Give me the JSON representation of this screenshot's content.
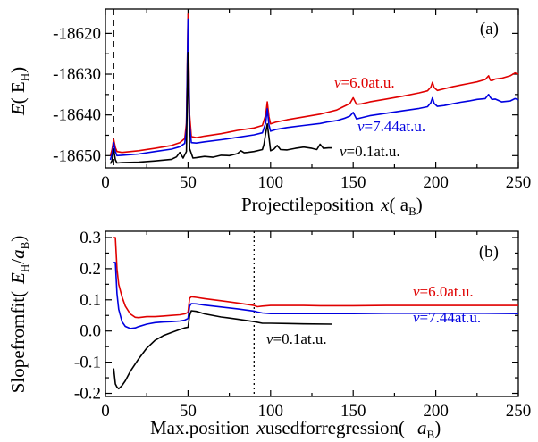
{
  "chart_data": [
    {
      "panel": "(a)",
      "type": "line",
      "xlabel": {
        "main": "Projectileposition",
        "var": "x",
        "unit_open": "( a",
        "unit_sub": "B",
        "unit_close": ")"
      },
      "ylabel": {
        "var": "E",
        "unit_open": "( E",
        "unit_sub": "H",
        "unit_close": ")"
      },
      "xlim": [
        0,
        250
      ],
      "ylim": [
        -18653,
        -18614
      ],
      "xticks": [
        0,
        50,
        100,
        150,
        200,
        250
      ],
      "xtick_labels": [
        "0",
        "50",
        "100",
        "150",
        "200",
        "250"
      ],
      "yticks": [
        -18620,
        -18630,
        -18640,
        -18650
      ],
      "ytick_labels": [
        "-18620",
        "-18630",
        "-18640",
        "-18650"
      ],
      "vline_dashed_x": 5,
      "series": [
        {
          "name": "v=6.0at.u.",
          "label": {
            "var": "v",
            "rest": "=6.0at.u."
          },
          "color": "#e00000",
          "x": [
            3,
            4,
            5,
            6,
            7,
            10,
            20,
            30,
            40,
            45,
            48,
            49,
            50,
            51,
            52,
            55,
            60,
            70,
            80,
            90,
            95,
            97,
            98,
            99,
            100,
            103,
            110,
            120,
            130,
            135,
            140,
            145,
            148,
            150,
            152,
            155,
            160,
            170,
            180,
            190,
            195,
            197,
            198,
            199,
            201,
            205,
            210,
            215,
            220,
            225,
            230,
            232,
            233,
            234,
            236,
            240,
            245,
            248,
            250
          ],
          "y": [
            -18650,
            -18648.5,
            -18646,
            -18648,
            -18649,
            -18649.2,
            -18648.8,
            -18648.2,
            -18647.5,
            -18646.8,
            -18645.8,
            -18642,
            -18615.3,
            -18640,
            -18645.3,
            -18645.6,
            -18645.2,
            -18644.6,
            -18643.8,
            -18643.2,
            -18642.6,
            -18640,
            -18636.8,
            -18640.5,
            -18642.2,
            -18641.8,
            -18641.2,
            -18640.5,
            -18639.8,
            -18639.3,
            -18638.8,
            -18637.8,
            -18637.2,
            -18635.8,
            -18637.4,
            -18637.3,
            -18636.8,
            -18636.1,
            -18635.4,
            -18634.6,
            -18634.1,
            -18633.2,
            -18632,
            -18633.3,
            -18634,
            -18633.6,
            -18633.1,
            -18632.7,
            -18632.3,
            -18631.9,
            -18631.3,
            -18630.4,
            -18631.5,
            -18631.6,
            -18631.2,
            -18631,
            -18630.4,
            -18629.7,
            -18630
          ]
        },
        {
          "name": "v=7.44at.u.",
          "label": {
            "var": "v",
            "rest": "=7.44at.u."
          },
          "color": "#0000e0",
          "x": [
            3,
            4,
            5,
            6,
            7,
            10,
            20,
            30,
            40,
            45,
            48,
            49,
            50,
            51,
            52,
            55,
            60,
            70,
            80,
            90,
            95,
            97,
            98,
            99,
            100,
            103,
            110,
            120,
            130,
            135,
            140,
            145,
            148,
            150,
            152,
            155,
            160,
            170,
            180,
            190,
            195,
            197,
            198,
            199,
            201,
            205,
            210,
            215,
            220,
            225,
            230,
            232,
            233,
            234,
            236,
            240,
            245,
            248,
            250
          ],
          "y": [
            -18651,
            -18649.5,
            -18646.8,
            -18649,
            -18650,
            -18649.9,
            -18649.6,
            -18649,
            -18648.4,
            -18647.8,
            -18647,
            -18643.5,
            -18616.5,
            -18642.5,
            -18646.8,
            -18646.9,
            -18646.6,
            -18646.1,
            -18645.5,
            -18644.9,
            -18644.4,
            -18642,
            -18638.5,
            -18642.5,
            -18644,
            -18643.6,
            -18643.1,
            -18642.6,
            -18642.1,
            -18641.7,
            -18641.4,
            -18640.8,
            -18640.3,
            -18639.4,
            -18641,
            -18640.7,
            -18640.2,
            -18639.6,
            -18639,
            -18638.4,
            -18638,
            -18637,
            -18635.8,
            -18637.2,
            -18637.9,
            -18637.7,
            -18637.3,
            -18636.9,
            -18636.6,
            -18636.2,
            -18636,
            -18635,
            -18635.7,
            -18636.2,
            -18636.1,
            -18636.8,
            -18636.6,
            -18636,
            -18636.3
          ]
        },
        {
          "name": "v=0.1at.u.",
          "label": {
            "var": "v",
            "rest": "=0.1at.u."
          },
          "color": "#000000",
          "x": [
            3,
            4,
            5,
            6,
            7,
            10,
            20,
            30,
            40,
            43,
            45,
            47,
            49,
            50,
            51,
            53,
            55,
            60,
            65,
            70,
            75,
            80,
            82,
            84,
            86,
            90,
            95,
            96,
            97,
            98,
            99,
            100,
            102,
            104,
            106,
            110,
            115,
            120,
            125,
            128,
            130,
            132,
            135,
            137
          ],
          "y": [
            -18652,
            -18651.2,
            -18648.5,
            -18651,
            -18651.8,
            -18651.7,
            -18651.6,
            -18651.3,
            -18650.9,
            -18650.3,
            -18649.2,
            -18650.6,
            -18649,
            -18624.7,
            -18648.3,
            -18650.6,
            -18650.5,
            -18650.2,
            -18650.4,
            -18649.9,
            -18650,
            -18649.5,
            -18648.8,
            -18649.3,
            -18649.2,
            -18649,
            -18648.5,
            -18647.2,
            -18644.5,
            -18642.2,
            -18645.5,
            -18648.8,
            -18648.4,
            -18647.5,
            -18648.5,
            -18648.6,
            -18648.2,
            -18647.9,
            -18648.2,
            -18648.5,
            -18647.2,
            -18648.2,
            -18648.1,
            -18648.1
          ]
        }
      ]
    },
    {
      "panel": "(b)",
      "type": "line",
      "xlabel": {
        "main": "Max.position",
        "var": "x",
        "rest": "usedforregression(",
        "unit_open": "a",
        "unit_sub": "B",
        "unit_close": ")"
      },
      "ylabel": {
        "main": "Slopefromfit(",
        "unit_open": "E",
        "unit_sub": "H",
        "unit_mid": "/",
        "unit_var": "a",
        "unit_sub2": "B",
        "unit_close": ")"
      },
      "xlim": [
        0,
        250
      ],
      "ylim": [
        -0.21,
        0.32
      ],
      "xticks": [
        0,
        50,
        100,
        150,
        200,
        250
      ],
      "xtick_labels": [
        "0",
        "50",
        "100",
        "150",
        "200",
        "250"
      ],
      "yticks": [
        0.3,
        0.2,
        0.1,
        0.0,
        -0.1,
        -0.2
      ],
      "ytick_labels": [
        "0.3",
        "0.2",
        "0.1",
        "0.0",
        "-0.1",
        "-0.2"
      ],
      "vline_dotted_x": 90,
      "series": [
        {
          "name": "v=6.0at.u.",
          "label": {
            "var": "v",
            "rest": "=6.0at.u."
          },
          "color": "#e00000",
          "x": [
            5,
            6,
            7,
            8,
            10,
            12,
            15,
            18,
            20,
            25,
            30,
            35,
            40,
            45,
            48,
            50,
            51,
            52,
            55,
            60,
            70,
            80,
            90,
            92,
            95,
            100,
            110,
            120,
            130,
            140,
            150,
            170,
            200,
            230,
            250
          ],
          "y": [
            0.3,
            0.3,
            0.2,
            0.15,
            0.11,
            0.08,
            0.055,
            0.044,
            0.043,
            0.046,
            0.046,
            0.048,
            0.05,
            0.052,
            0.055,
            0.06,
            0.105,
            0.11,
            0.108,
            0.104,
            0.097,
            0.09,
            0.082,
            0.078,
            0.08,
            0.082,
            0.082,
            0.082,
            0.081,
            0.081,
            0.081,
            0.082,
            0.082,
            0.082,
            0.082
          ]
        },
        {
          "name": "v=7.44at.u.",
          "label": {
            "var": "v",
            "rest": "=7.44at.u."
          },
          "color": "#0000e0",
          "x": [
            5,
            6,
            7,
            8,
            10,
            12,
            15,
            18,
            20,
            25,
            30,
            35,
            40,
            45,
            48,
            50,
            51,
            52,
            55,
            60,
            70,
            80,
            90,
            92,
            95,
            100,
            110,
            120,
            130,
            140,
            150,
            170,
            200,
            230,
            250
          ],
          "y": [
            0.22,
            0.22,
            0.12,
            0.07,
            0.03,
            0.015,
            0.008,
            0.01,
            0.014,
            0.022,
            0.027,
            0.029,
            0.03,
            0.032,
            0.035,
            0.04,
            0.08,
            0.088,
            0.087,
            0.083,
            0.077,
            0.071,
            0.064,
            0.061,
            0.058,
            0.056,
            0.056,
            0.056,
            0.056,
            0.056,
            0.056,
            0.057,
            0.057,
            0.057,
            0.056
          ]
        },
        {
          "name": "v=0.1at.u.",
          "label": {
            "var": "v",
            "rest": "=0.1at.u."
          },
          "color": "#000000",
          "x": [
            5,
            6,
            7,
            8,
            10,
            12,
            15,
            20,
            25,
            30,
            35,
            40,
            45,
            48,
            50,
            51,
            52,
            55,
            60,
            70,
            80,
            90,
            95,
            100,
            110,
            120,
            137
          ],
          "y": [
            -0.12,
            -0.17,
            -0.18,
            -0.185,
            -0.175,
            -0.16,
            -0.13,
            -0.09,
            -0.055,
            -0.03,
            -0.015,
            -0.005,
            0.005,
            0.01,
            0.012,
            0.05,
            0.065,
            0.063,
            0.055,
            0.045,
            0.038,
            0.03,
            0.025,
            0.025,
            0.024,
            0.023,
            0.022
          ]
        }
      ]
    }
  ]
}
